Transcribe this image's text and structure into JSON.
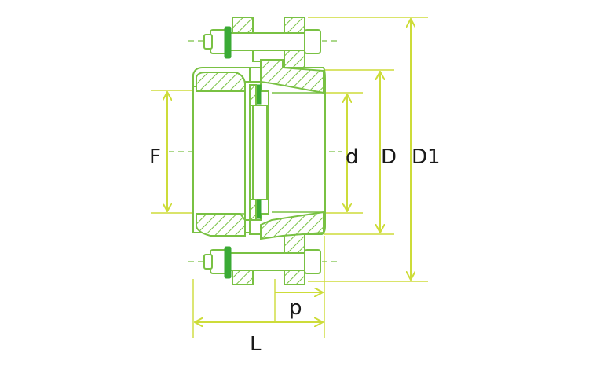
{
  "labels": {
    "F": "F",
    "d": "d",
    "D": "D",
    "D1": "D1",
    "p": "p",
    "L": "L"
  },
  "colors": {
    "outline": "#79c143",
    "solid": "#3aaa35",
    "dimension": "#cddc39",
    "text": "#1a1a1a"
  }
}
